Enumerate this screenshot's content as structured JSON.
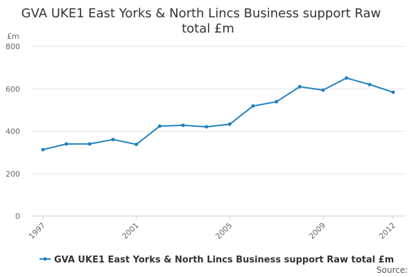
{
  "chart_data": {
    "type": "line",
    "title_lines": [
      "GVA UKE1 East Yorks & North Lincs Business support Raw",
      "total £m"
    ],
    "unit_label": "£m",
    "x": [
      1997,
      1998,
      1999,
      2000,
      2001,
      2002,
      2003,
      2004,
      2005,
      2006,
      2007,
      2008,
      2009,
      2010,
      2011,
      2012
    ],
    "x_tick_labels": [
      "1997",
      "2001",
      "2005",
      "2009",
      "2012"
    ],
    "y_ticks": [
      0,
      200,
      400,
      600,
      800
    ],
    "ylim": [
      0,
      800
    ],
    "grid": true,
    "legend_position": "bottom-left",
    "series": [
      {
        "name": "GVA UKE1 East Yorks & North Lincs Business support Raw total £m",
        "color": "#1f7fbf",
        "values": [
          313,
          340,
          340,
          361,
          338,
          424,
          428,
          421,
          433,
          519,
          539,
          610,
          594,
          651,
          620,
          584
        ]
      }
    ]
  },
  "footer": {
    "source_label": "Source:"
  }
}
